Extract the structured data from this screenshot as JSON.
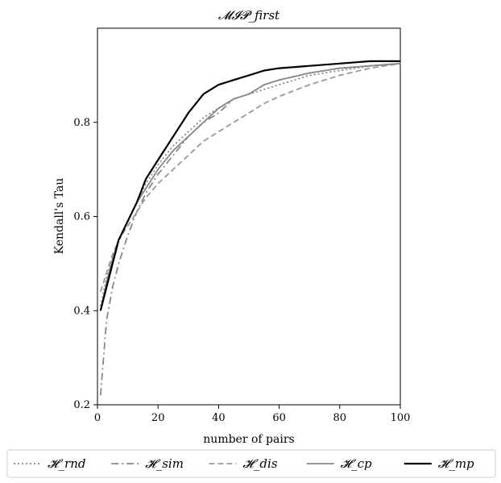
{
  "chart_data": {
    "type": "line",
    "title": "𝓜𝓘𝓟_first",
    "xlabel": "number of pairs",
    "ylabel": "Kendall's Tau",
    "xlim": [
      0,
      100
    ],
    "ylim": [
      0.2,
      1.0
    ],
    "xticks": [
      0,
      20,
      40,
      60,
      80,
      100
    ],
    "yticks": [
      0.2,
      0.4,
      0.6,
      0.8
    ],
    "xtick_labels": [
      "0",
      "20",
      "40",
      "60",
      "80",
      "100"
    ],
    "ytick_labels": [
      "0.2",
      "0.4",
      "0.6",
      "0.8"
    ],
    "grid": false,
    "legend_position": "bottom",
    "x": [
      1,
      3,
      5,
      7,
      10,
      13,
      16,
      20,
      25,
      30,
      35,
      40,
      45,
      50,
      55,
      60,
      70,
      80,
      90,
      100
    ],
    "series": [
      {
        "name": "𝓗_rnd",
        "style": "dotted",
        "color": "#888888",
        "values": [
          0.41,
          0.47,
          0.51,
          0.55,
          0.59,
          0.63,
          0.67,
          0.71,
          0.75,
          0.78,
          0.81,
          0.83,
          0.85,
          0.86,
          0.87,
          0.88,
          0.9,
          0.91,
          0.92,
          0.925
        ]
      },
      {
        "name": "𝓗_sim",
        "style": "dashdot",
        "color": "#888888",
        "values": [
          0.22,
          0.38,
          0.45,
          0.5,
          0.56,
          0.61,
          0.65,
          0.69,
          0.73,
          0.77,
          0.8,
          0.82,
          0.85,
          0.86,
          0.88,
          0.89,
          0.905,
          0.915,
          0.92,
          0.925
        ]
      },
      {
        "name": "𝓗_dis",
        "style": "dashed",
        "color": "#999999",
        "values": [
          0.44,
          0.48,
          0.52,
          0.55,
          0.58,
          0.61,
          0.64,
          0.67,
          0.7,
          0.73,
          0.76,
          0.78,
          0.8,
          0.82,
          0.84,
          0.855,
          0.88,
          0.9,
          0.915,
          0.925
        ]
      },
      {
        "name": "𝓗_cp",
        "style": "solid",
        "color": "#888888",
        "values": [
          0.4,
          0.46,
          0.51,
          0.55,
          0.59,
          0.63,
          0.66,
          0.7,
          0.74,
          0.77,
          0.8,
          0.83,
          0.85,
          0.86,
          0.88,
          0.89,
          0.905,
          0.915,
          0.92,
          0.925
        ]
      },
      {
        "name": "𝓗_mp",
        "style": "solid",
        "color": "#000000",
        "values": [
          0.4,
          0.45,
          0.5,
          0.55,
          0.59,
          0.63,
          0.68,
          0.72,
          0.77,
          0.82,
          0.86,
          0.88,
          0.89,
          0.9,
          0.91,
          0.915,
          0.92,
          0.925,
          0.93,
          0.93
        ]
      }
    ]
  }
}
